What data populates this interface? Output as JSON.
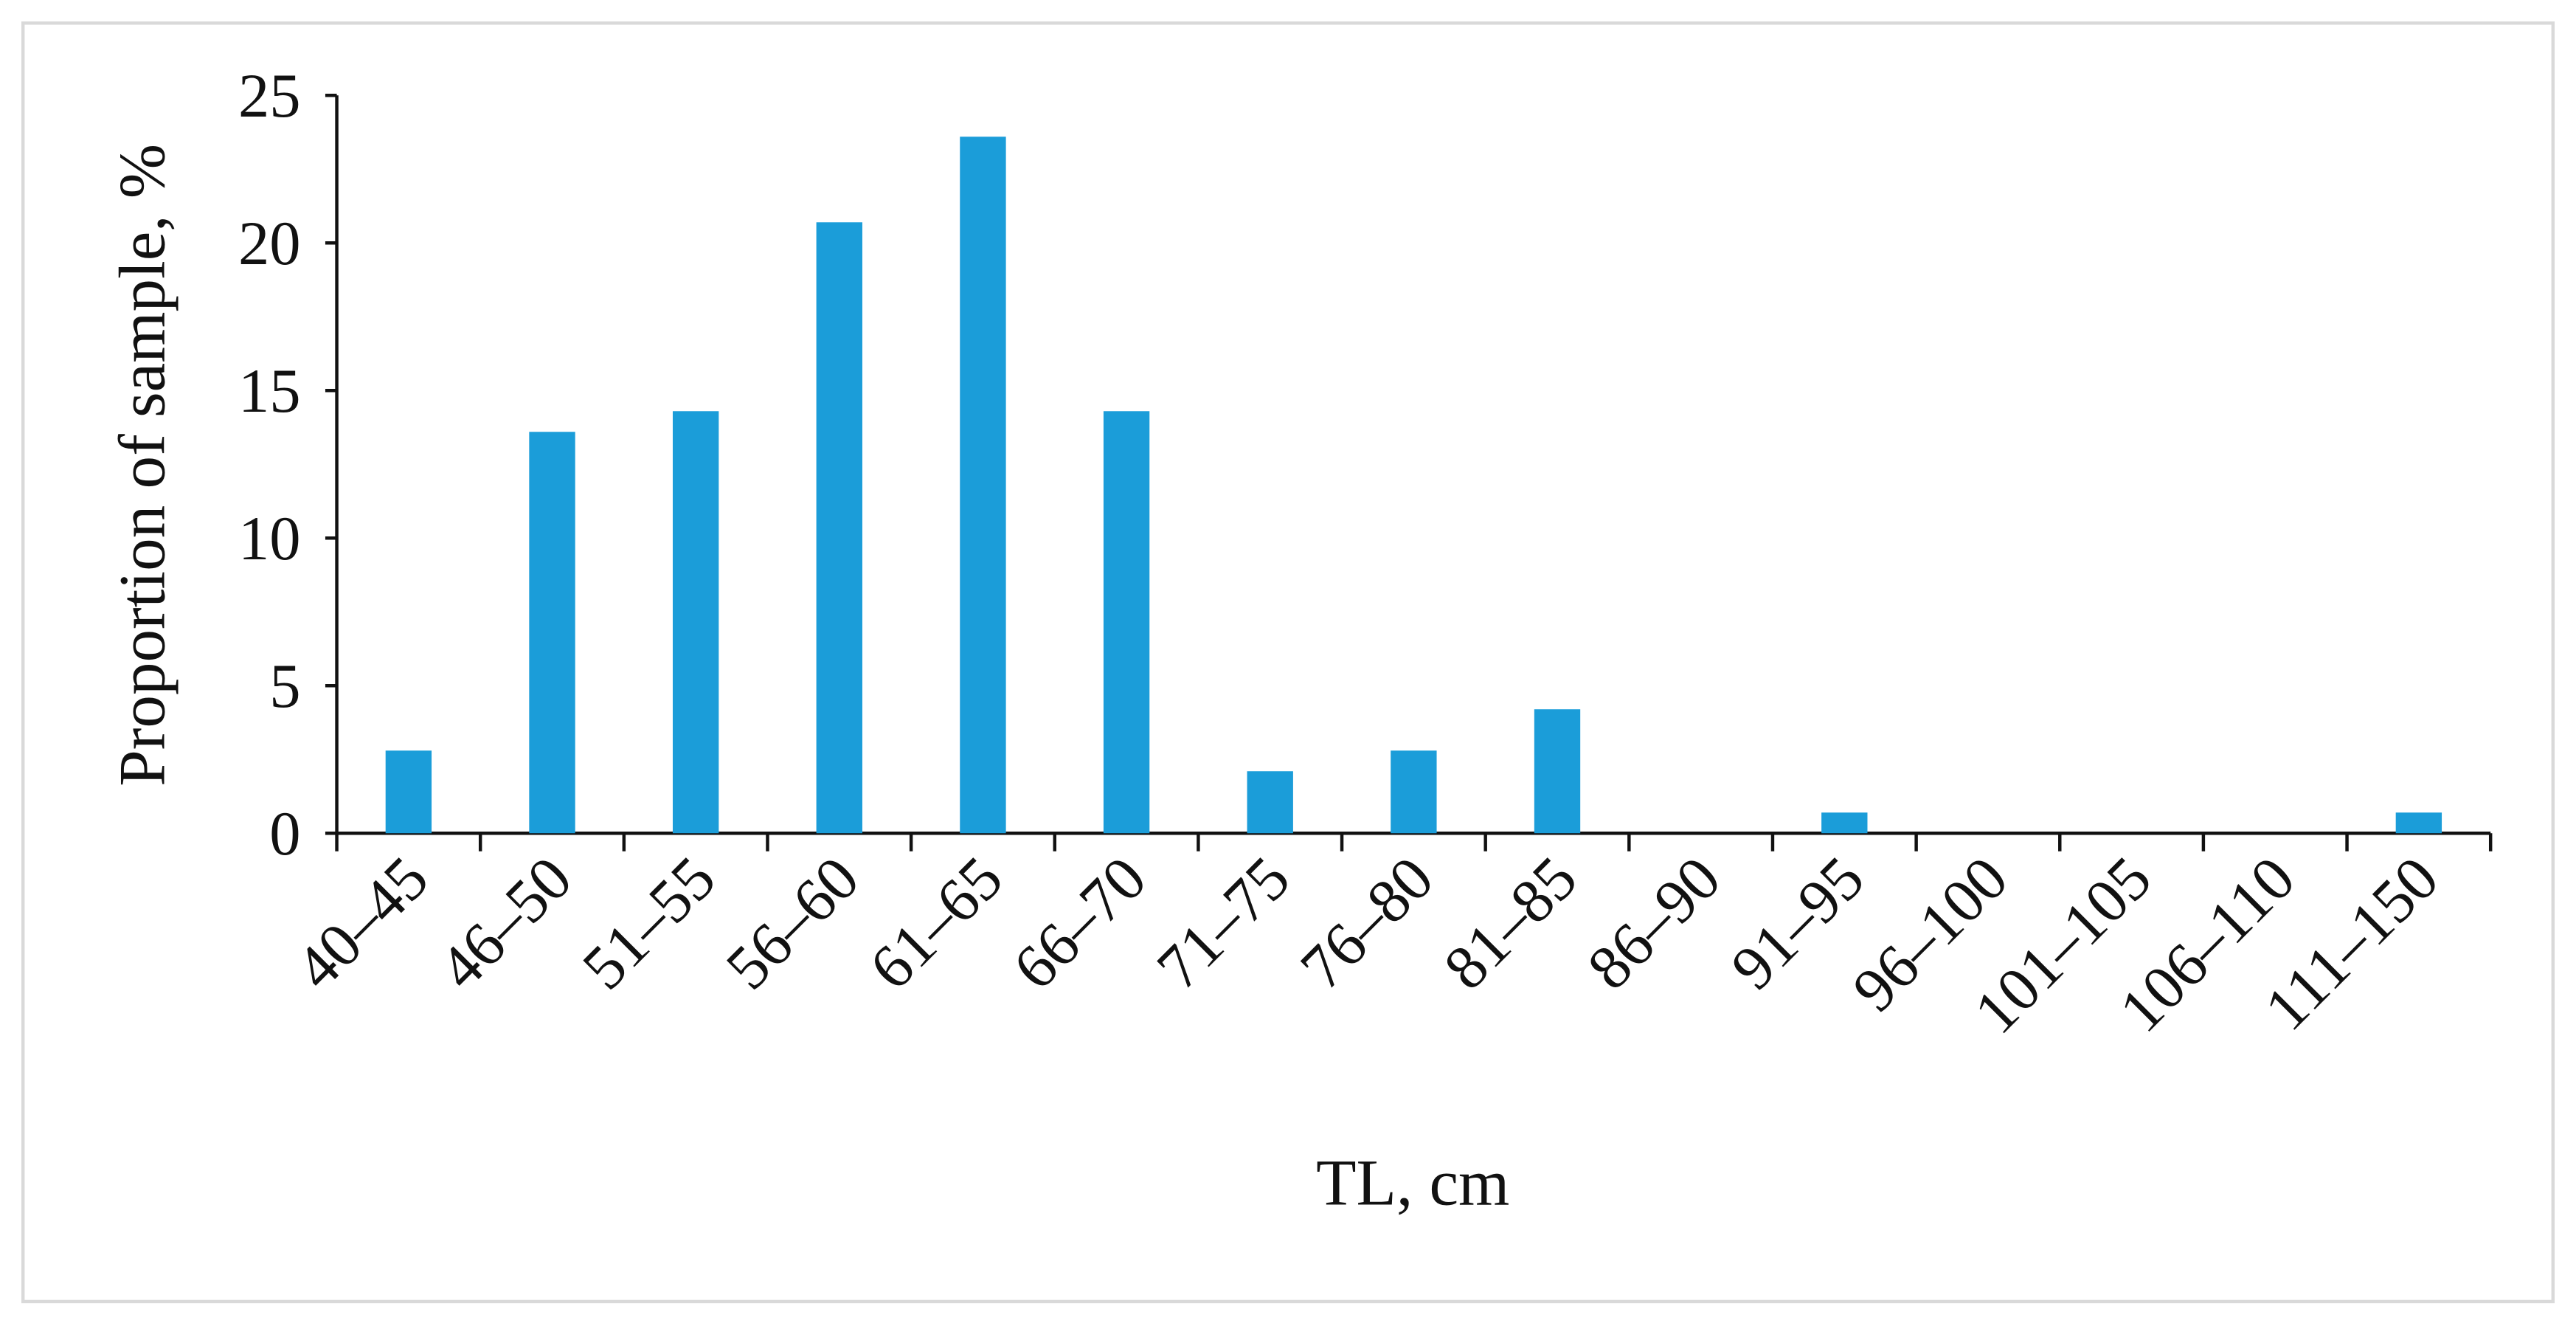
{
  "chart_data": {
    "type": "bar",
    "x_label": "TL, cm",
    "y_label": "Proportion of sample, %",
    "categories": [
      "40–45",
      "46–50",
      "51–55",
      "56–60",
      "61–65",
      "66–70",
      "71–75",
      "76–80",
      "81–85",
      "86–90",
      "91–95",
      "96–100",
      "101–105",
      "106–110",
      "111–150"
    ],
    "values": [
      2.8,
      13.6,
      14.3,
      20.7,
      23.6,
      14.3,
      2.1,
      2.8,
      4.2,
      0,
      0.7,
      0,
      0,
      0,
      0.7
    ],
    "color": "#1b9dd9",
    "ylim": [
      0,
      25
    ],
    "yticks": [
      0,
      5,
      10,
      15,
      20,
      25
    ],
    "grid": false
  }
}
